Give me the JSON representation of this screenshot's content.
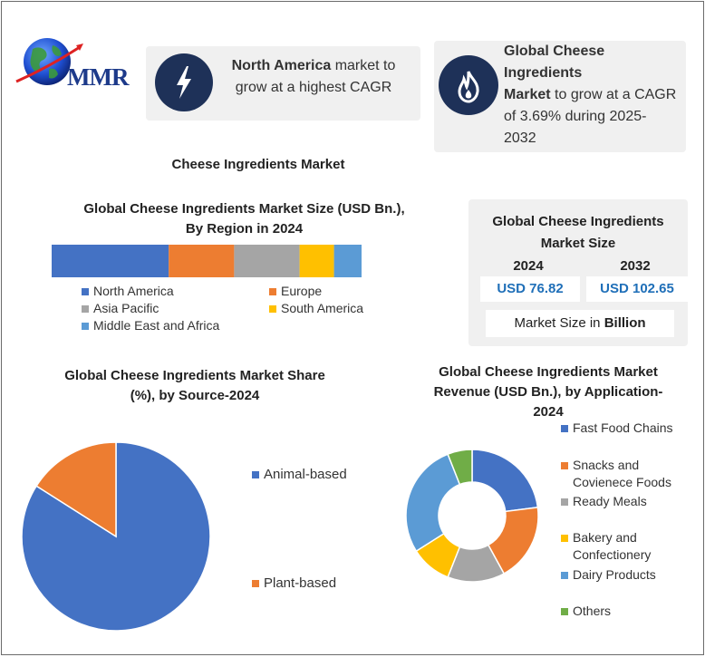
{
  "logo": {
    "text": "MMR"
  },
  "card_left": {
    "bold_text": "North America",
    "rest_line1": " market to",
    "line2": "grow at a highest CAGR",
    "icon": "lightning-bolt-icon"
  },
  "card_right": {
    "bold_line1": "Global Cheese Ingredients",
    "bold_line2": "Market",
    "rest_line2": " to grow at a CAGR",
    "line3": "of 3.69% during 2025-",
    "line4": "2032",
    "icon": "flame-icon"
  },
  "page_title": "Cheese Ingredients Market",
  "region_chart": {
    "title_line1": "Global Cheese Ingredients Market Size (USD Bn.),",
    "title_line2": "By Region in 2024"
  },
  "market_size": {
    "title_line1": "Global Cheese Ingredients",
    "title_line2": "Market Size",
    "year_2024": "2024",
    "year_2032": "2032",
    "value_2024": "USD 76.82",
    "value_2032": "USD 102.65",
    "note_prefix": "Market Size in ",
    "note_bold": "Billion"
  },
  "source_chart": {
    "title_line1": "Global Cheese Ingredients Market Share",
    "title_line2": "(%), by Source-2024"
  },
  "application_chart": {
    "title_line1": "Global Cheese Ingredients Market",
    "title_line2": "Revenue (USD Bn.), by Application-",
    "title_line3": "2024"
  },
  "colors": {
    "blue": "#4472c4",
    "orange": "#ed7d31",
    "gray": "#a5a5a5",
    "yellow": "#ffc000",
    "lightblue": "#5b9bd5",
    "green": "#70ad47",
    "navy": "#1e3158",
    "value_blue": "#1f6fb8"
  },
  "chart_data": [
    {
      "type": "bar",
      "stacked": true,
      "orientation": "horizontal",
      "series": [
        {
          "name": "North America",
          "values": [
            34
          ],
          "color": "#4472c4"
        },
        {
          "name": "Europe",
          "values": [
            19
          ],
          "color": "#ed7d31"
        },
        {
          "name": "Asia Pacific",
          "values": [
            19
          ],
          "color": "#a5a5a5"
        },
        {
          "name": "South America",
          "values": [
            10
          ],
          "color": "#ffc000"
        },
        {
          "name": "Middle East and Africa",
          "values": [
            8
          ],
          "color": "#5b9bd5"
        }
      ],
      "legend_labels": [
        "North America",
        "Europe",
        "Asia Pacific",
        "South America",
        "Middle East and Africa"
      ]
    },
    {
      "type": "pie",
      "labels": [
        "Animal-based",
        "Plant-based"
      ],
      "values": [
        84,
        16
      ],
      "colors": [
        "#4472c4",
        "#ed7d31"
      ]
    },
    {
      "type": "pie",
      "donut": true,
      "labels": [
        "Fast Food Chains",
        "Snacks and Covienece Foods",
        "Ready Meals",
        "Bakery and Confectionery",
        "Dairy Products",
        "Others"
      ],
      "legend_lines": [
        [
          "Fast Food Chains"
        ],
        [
          "Snacks and",
          "Covienece Foods"
        ],
        [
          "Ready Meals"
        ],
        [
          "Bakery and",
          "Confectionery"
        ],
        [
          "Dairy Products"
        ],
        [
          "Others"
        ]
      ],
      "values": [
        23,
        19,
        14,
        10,
        28,
        6
      ],
      "colors": [
        "#4472c4",
        "#ed7d31",
        "#a5a5a5",
        "#ffc000",
        "#5b9bd5",
        "#70ad47"
      ]
    }
  ]
}
